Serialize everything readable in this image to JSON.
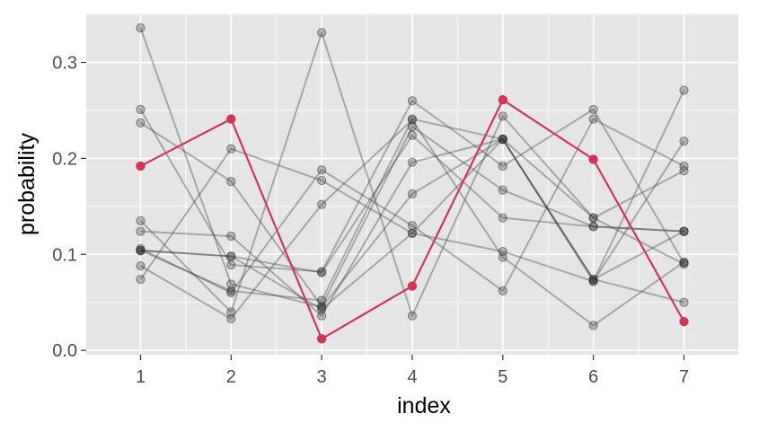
{
  "chart_data": {
    "type": "line",
    "xlabel": "index",
    "ylabel": "probability",
    "x": [
      1,
      2,
      3,
      4,
      5,
      6,
      7
    ],
    "xlim": [
      0.4,
      7.6
    ],
    "ylim": [
      -0.0045,
      0.351
    ],
    "yticks": [
      0.0,
      0.1,
      0.2,
      0.3
    ],
    "ytick_labels": [
      "0.0",
      "0.1",
      "0.2",
      "0.3"
    ],
    "xtick_labels": [
      "1",
      "2",
      "3",
      "4",
      "5",
      "6",
      "7"
    ],
    "grid": true,
    "legend": "none",
    "colors": {
      "panel_background": "#e5e5e5",
      "gridline": "#ffffff",
      "background_series": "#333333",
      "highlight_series": "#d1365a",
      "tick": "#333333"
    },
    "series": [
      {
        "highlight": false,
        "values": [
          0.336,
          0.069,
          0.045,
          0.163,
          0.22,
          0.074,
          0.124
        ]
      },
      {
        "highlight": false,
        "values": [
          0.251,
          0.089,
          0.082,
          0.26,
          0.192,
          0.251,
          0.091
        ]
      },
      {
        "highlight": false,
        "values": [
          0.237,
          0.176,
          0.046,
          0.233,
          0.167,
          0.129,
          0.124
        ]
      },
      {
        "highlight": false,
        "values": [
          0.135,
          0.04,
          0.331,
          0.036,
          0.244,
          0.138,
          0.09
        ]
      },
      {
        "highlight": false,
        "values": [
          0.124,
          0.119,
          0.036,
          0.196,
          0.22,
          0.074,
          0.05
        ]
      },
      {
        "highlight": false,
        "values": [
          0.106,
          0.06,
          0.188,
          0.13,
          0.062,
          0.241,
          0.192
        ]
      },
      {
        "highlight": false,
        "values": [
          0.104,
          0.098,
          0.081,
          0.224,
          0.138,
          0.129,
          0.124
        ]
      },
      {
        "highlight": false,
        "values": [
          0.088,
          0.033,
          0.152,
          0.24,
          0.097,
          0.026,
          0.092
        ]
      },
      {
        "highlight": false,
        "values": [
          0.074,
          0.21,
          0.177,
          0.122,
          0.103,
          0.072,
          0.271
        ]
      },
      {
        "highlight": false,
        "values": [
          0.104,
          0.062,
          0.052,
          0.241,
          0.22,
          0.138,
          0.187
        ]
      },
      {
        "highlight": false,
        "values": [
          0.104,
          0.098,
          0.043,
          0.122,
          0.22,
          0.072,
          0.218
        ]
      },
      {
        "highlight": true,
        "values": [
          0.192,
          0.241,
          0.012,
          0.067,
          0.261,
          0.199,
          0.03
        ]
      }
    ]
  }
}
